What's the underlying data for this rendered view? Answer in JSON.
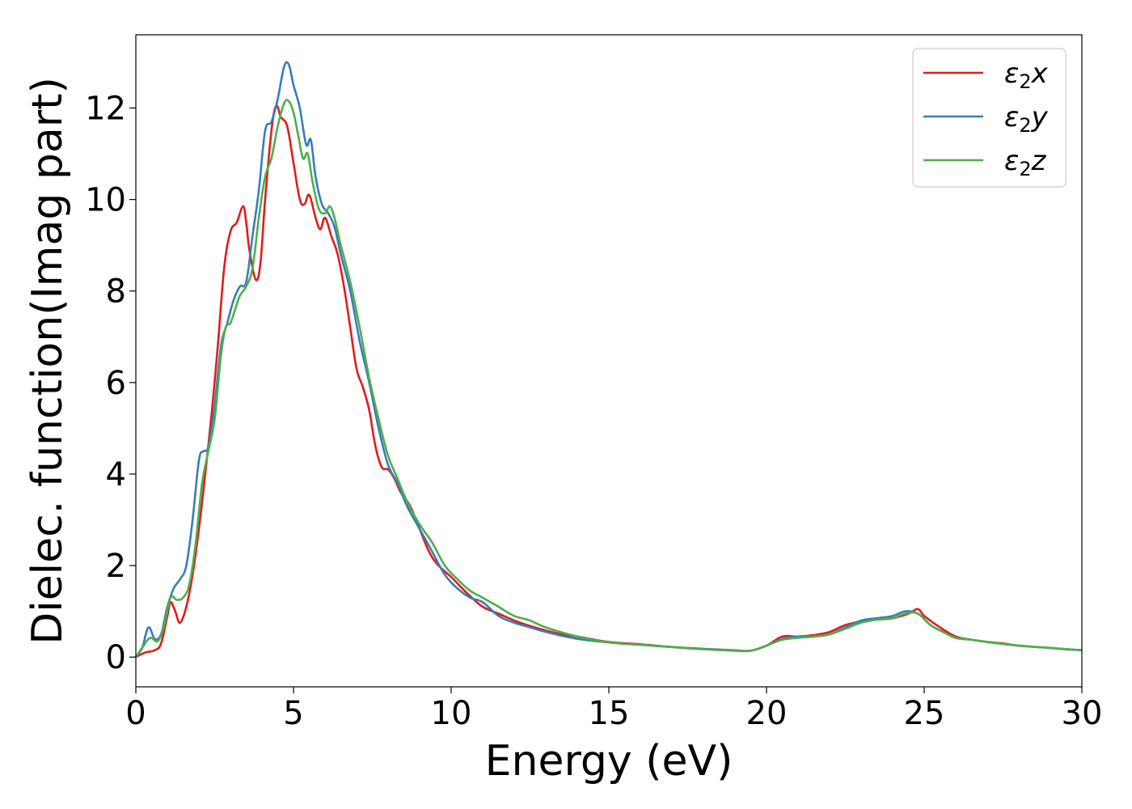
{
  "chart_data": {
    "type": "line",
    "title": "",
    "xlabel": "Energy (eV)",
    "ylabel": "Dielec. function(Imag part)",
    "xlim": [
      0,
      30
    ],
    "ylim": [
      -0.65,
      13.6
    ],
    "xticks": [
      0,
      5,
      10,
      15,
      20,
      25,
      30
    ],
    "xtick_labels": [
      "0",
      "5",
      "10",
      "15",
      "20",
      "25",
      "30"
    ],
    "yticks": [
      0,
      2,
      4,
      6,
      8,
      10,
      12
    ],
    "ytick_labels": [
      "0",
      "2",
      "4",
      "6",
      "8",
      "10",
      "12"
    ],
    "grid": false,
    "legend_position": "top-right",
    "series": [
      {
        "name": "ε₂x",
        "legend_symbol": "ε",
        "legend_sub": "2",
        "legend_var": "x",
        "color": "#e41a1c",
        "x": [
          0,
          0.3,
          0.6,
          0.8,
          1.0,
          1.1,
          1.25,
          1.4,
          1.6,
          1.8,
          2.0,
          2.2,
          2.4,
          2.6,
          2.8,
          3.0,
          3.2,
          3.4,
          3.5,
          3.6,
          3.8,
          3.95,
          4.1,
          4.3,
          4.45,
          4.6,
          4.8,
          5.0,
          5.2,
          5.35,
          5.5,
          5.7,
          5.85,
          6.0,
          6.2,
          6.4,
          6.6,
          6.8,
          7.0,
          7.2,
          7.4,
          7.6,
          7.8,
          8.0,
          8.2,
          8.4,
          8.7,
          9.0,
          9.3,
          9.6,
          10.0,
          10.5,
          11.0,
          11.5,
          12.0,
          12.5,
          13.0,
          13.5,
          14.0,
          15.0,
          16.0,
          17.0,
          18.0,
          19.0,
          19.5,
          20.0,
          20.5,
          21.0,
          21.5,
          22.0,
          22.5,
          23.0,
          23.5,
          24.0,
          24.5,
          24.8,
          25.0,
          25.5,
          26.0,
          26.5,
          27.0,
          27.5,
          28.0,
          29.0,
          29.5,
          30.0
        ],
        "y": [
          0,
          0.1,
          0.15,
          0.3,
          0.9,
          1.2,
          1.0,
          0.75,
          1.1,
          1.8,
          2.8,
          4.0,
          5.3,
          6.8,
          8.5,
          9.3,
          9.5,
          9.85,
          9.5,
          8.9,
          8.25,
          8.6,
          10.0,
          11.5,
          12.05,
          11.8,
          11.6,
          10.8,
          10.0,
          9.9,
          10.1,
          9.6,
          9.35,
          9.6,
          9.2,
          8.8,
          8.1,
          7.2,
          6.3,
          5.9,
          5.4,
          4.6,
          4.15,
          4.1,
          3.9,
          3.6,
          3.3,
          2.8,
          2.3,
          2.0,
          1.75,
          1.4,
          1.1,
          0.95,
          0.8,
          0.68,
          0.58,
          0.5,
          0.45,
          0.33,
          0.28,
          0.22,
          0.18,
          0.15,
          0.14,
          0.25,
          0.45,
          0.45,
          0.48,
          0.55,
          0.7,
          0.78,
          0.82,
          0.85,
          0.95,
          1.05,
          0.9,
          0.65,
          0.45,
          0.38,
          0.33,
          0.3,
          0.25,
          0.2,
          0.17,
          0.15
        ]
      },
      {
        "name": "ε₂y",
        "legend_symbol": "ε",
        "legend_sub": "2",
        "legend_var": "y",
        "color": "#377eb8",
        "x": [
          0,
          0.2,
          0.4,
          0.6,
          0.8,
          1.0,
          1.2,
          1.4,
          1.6,
          1.8,
          2.0,
          2.15,
          2.3,
          2.5,
          2.7,
          2.9,
          3.1,
          3.3,
          3.5,
          3.7,
          3.9,
          4.1,
          4.3,
          4.5,
          4.7,
          4.85,
          5.0,
          5.2,
          5.4,
          5.55,
          5.7,
          5.9,
          6.1,
          6.3,
          6.5,
          6.8,
          7.1,
          7.4,
          7.7,
          8.0,
          8.3,
          8.6,
          9.0,
          9.4,
          9.8,
          10.2,
          10.6,
          11.0,
          11.5,
          12.0,
          12.5,
          13.0,
          14.0,
          15.0,
          16.0,
          17.0,
          18.0,
          19.0,
          19.5,
          20.0,
          20.5,
          21.0,
          21.5,
          22.0,
          22.5,
          23.0,
          23.5,
          24.0,
          24.4,
          24.8,
          25.2,
          25.6,
          26.0,
          26.5,
          27.0,
          28.0,
          29.0,
          30.0
        ],
        "y": [
          0,
          0.2,
          0.65,
          0.4,
          0.5,
          1.1,
          1.5,
          1.7,
          2.0,
          3.0,
          4.3,
          4.5,
          4.6,
          5.5,
          6.8,
          7.3,
          7.8,
          8.1,
          8.2,
          9.2,
          10.2,
          11.5,
          11.7,
          12.2,
          12.9,
          12.95,
          12.5,
          12.0,
          11.2,
          11.3,
          10.5,
          9.9,
          9.7,
          9.4,
          8.8,
          8.0,
          6.9,
          6.0,
          5.0,
          4.2,
          3.8,
          3.3,
          2.8,
          2.3,
          1.8,
          1.5,
          1.3,
          1.2,
          0.9,
          0.75,
          0.65,
          0.55,
          0.4,
          0.32,
          0.27,
          0.22,
          0.18,
          0.14,
          0.14,
          0.25,
          0.4,
          0.45,
          0.45,
          0.5,
          0.65,
          0.8,
          0.85,
          0.9,
          1.0,
          0.95,
          0.7,
          0.55,
          0.42,
          0.38,
          0.33,
          0.25,
          0.2,
          0.15
        ]
      },
      {
        "name": "ε₂z",
        "legend_symbol": "ε",
        "legend_sub": "2",
        "legend_var": "z",
        "color": "#4daf4a",
        "x": [
          0,
          0.2,
          0.45,
          0.7,
          0.9,
          1.1,
          1.3,
          1.5,
          1.7,
          1.9,
          2.1,
          2.3,
          2.5,
          2.7,
          2.85,
          3.0,
          3.15,
          3.3,
          3.5,
          3.7,
          3.9,
          4.1,
          4.3,
          4.5,
          4.7,
          4.85,
          5.0,
          5.15,
          5.3,
          5.45,
          5.6,
          5.8,
          6.0,
          6.15,
          6.3,
          6.5,
          6.8,
          7.1,
          7.4,
          7.7,
          8.0,
          8.3,
          8.6,
          9.0,
          9.4,
          9.8,
          10.2,
          10.6,
          11.0,
          11.5,
          12.0,
          12.5,
          13.0,
          14.0,
          15.0,
          16.0,
          17.0,
          18.0,
          19.0,
          19.5,
          20.0,
          20.5,
          21.0,
          21.5,
          22.0,
          22.5,
          23.0,
          23.5,
          24.0,
          24.4,
          24.8,
          25.2,
          25.6,
          26.0,
          26.5,
          27.0,
          28.0,
          29.0,
          30.0
        ],
        "y": [
          0,
          0.2,
          0.42,
          0.35,
          0.7,
          1.3,
          1.25,
          1.3,
          1.6,
          2.5,
          3.8,
          4.5,
          5.2,
          6.6,
          7.2,
          7.3,
          7.6,
          7.9,
          8.1,
          8.5,
          9.6,
          10.5,
          10.9,
          11.6,
          12.1,
          12.15,
          11.9,
          11.4,
          10.9,
          11.0,
          10.4,
          9.8,
          9.7,
          9.85,
          9.6,
          9.0,
          8.2,
          7.2,
          6.1,
          5.2,
          4.4,
          3.9,
          3.4,
          2.9,
          2.5,
          2.0,
          1.7,
          1.45,
          1.3,
          1.1,
          0.9,
          0.8,
          0.65,
          0.45,
          0.32,
          0.27,
          0.22,
          0.17,
          0.14,
          0.14,
          0.25,
          0.38,
          0.42,
          0.45,
          0.5,
          0.62,
          0.75,
          0.82,
          0.85,
          0.95,
          0.95,
          0.7,
          0.55,
          0.42,
          0.38,
          0.33,
          0.25,
          0.2,
          0.15
        ]
      }
    ]
  }
}
